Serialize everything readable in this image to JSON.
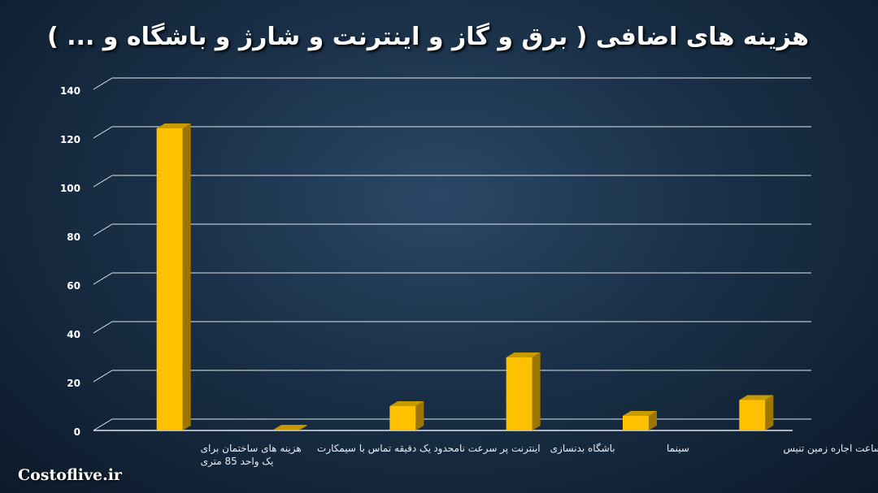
{
  "chart_data": {
    "type": "bar",
    "title": "هزینه های اضافی ( برق و گاز و اینترنت و شارژ و باشگاه و ... )",
    "categories": [
      [
        "هزینه های ساختمان برای",
        "یک واحد 85 متری"
      ],
      [
        "یک دقیقه تماس با سیمکارت"
      ],
      [
        "اینترنت پر سرعت نامحدود"
      ],
      [
        "باشگاه بدنسازی"
      ],
      [
        "سینما"
      ],
      [
        "یک ساعت اجاره زمین تنیس"
      ]
    ],
    "values": [
      124,
      0.3,
      10,
      30,
      6,
      12.5
    ],
    "ylim": [
      0,
      140
    ],
    "yticks": [
      "0",
      "20",
      "40",
      "60",
      "80",
      "100",
      "120",
      "140"
    ],
    "grid": true,
    "bar_color": "#FFC000",
    "xlabel": "",
    "ylabel": ""
  },
  "watermark": "Costoflive.ir"
}
